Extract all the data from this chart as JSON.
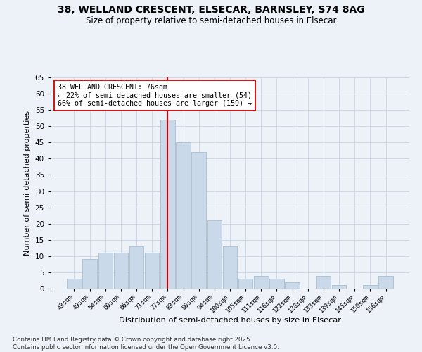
{
  "title1": "38, WELLAND CRESCENT, ELSECAR, BARNSLEY, S74 8AG",
  "title2": "Size of property relative to semi-detached houses in Elsecar",
  "xlabel": "Distribution of semi-detached houses by size in Elsecar",
  "ylabel": "Number of semi-detached properties",
  "bar_labels": [
    "43sqm",
    "49sqm",
    "54sqm",
    "60sqm",
    "66sqm",
    "71sqm",
    "77sqm",
    "83sqm",
    "88sqm",
    "94sqm",
    "100sqm",
    "105sqm",
    "111sqm",
    "116sqm",
    "122sqm",
    "128sqm",
    "133sqm",
    "139sqm",
    "145sqm",
    "150sqm",
    "156sqm"
  ],
  "bar_values": [
    3,
    9,
    11,
    11,
    13,
    11,
    52,
    45,
    42,
    21,
    13,
    3,
    4,
    3,
    2,
    0,
    4,
    1,
    0,
    1,
    4
  ],
  "bar_color": "#c9d9ea",
  "bar_edge_color": "#a8bece",
  "line_color": "#cc0000",
  "line_index": 6,
  "annotation_text": "38 WELLAND CRESCENT: 76sqm\n← 22% of semi-detached houses are smaller (54)\n66% of semi-detached houses are larger (159) →",
  "annotation_box_color": "#ffffff",
  "annotation_box_edge": "#cc0000",
  "ylim": [
    0,
    65
  ],
  "yticks": [
    0,
    5,
    10,
    15,
    20,
    25,
    30,
    35,
    40,
    45,
    50,
    55,
    60,
    65
  ],
  "grid_color": "#c8d4e4",
  "bg_color": "#edf1f8",
  "footnote": "Contains HM Land Registry data © Crown copyright and database right 2025.\nContains public sector information licensed under the Open Government Licence v3.0."
}
